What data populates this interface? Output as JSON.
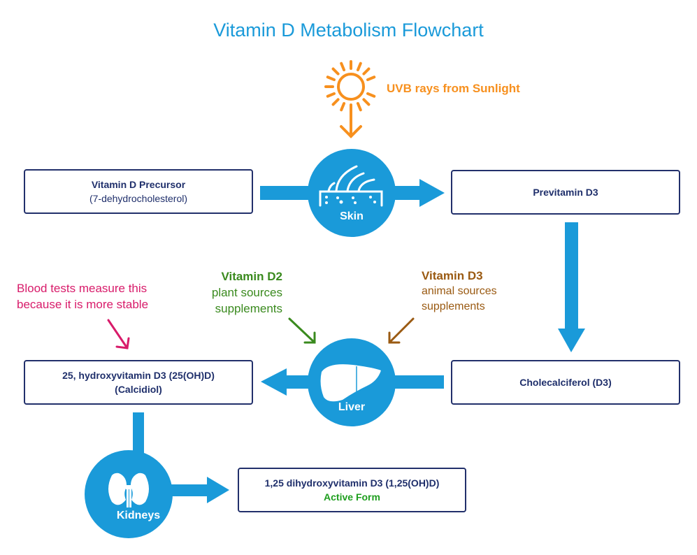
{
  "title": "Vitamin D Metabolism Flowchart",
  "colors": {
    "blue": "#1a9ad9",
    "navy": "#1f2f6b",
    "orange": "#f7901e",
    "green": "#3a8a1e",
    "brown": "#9a5a12",
    "pink": "#d81b6a",
    "active": "#1e9e1e"
  },
  "sunlight": {
    "label": "UVB rays from Sunlight",
    "icon": "sun-icon"
  },
  "nodes": {
    "precursor": {
      "title": "Vitamin D Precursor",
      "subtitle": "(7-dehydrocholesterol)"
    },
    "previtamin": {
      "title": "Previtamin D3"
    },
    "cholecalciferol": {
      "title": "Cholecalciferol (D3)"
    },
    "calcidiol": {
      "title": "25, hydroxyvitamin D3 (25(OH)D)",
      "subtitle": "(Calcidiol)"
    },
    "active": {
      "title": "1,25 dihydroxyvitamin D3  (1,25(OH)D)",
      "subtitle": "Active Form"
    }
  },
  "organs": {
    "skin": "Skin",
    "liver": "Liver",
    "kidneys": "Kidneys"
  },
  "annotations": {
    "d2": {
      "title": "Vitamin D2",
      "line1": "plant sources",
      "line2": "supplements"
    },
    "d3": {
      "title": "Vitamin D3",
      "line1": "animal sources",
      "line2": "supplements"
    },
    "blood": {
      "line1": "Blood tests measure this",
      "line2": "because it is more stable"
    }
  }
}
